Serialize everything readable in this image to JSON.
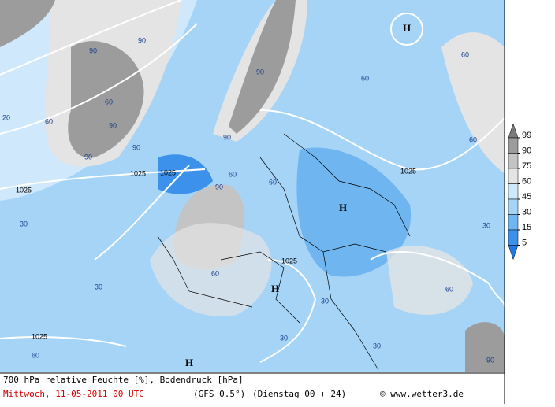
{
  "map": {
    "labels": [
      "H",
      "H",
      "H",
      "H",
      "1025",
      "1025",
      "1025",
      "1025",
      "1025",
      "1025",
      "90",
      "90",
      "90",
      "90",
      "90",
      "90",
      "90",
      "90",
      "60",
      "60",
      "60",
      "60",
      "60",
      "60",
      "60",
      "60",
      "60",
      "30",
      "30",
      "30",
      "30",
      "30",
      "30",
      "20",
      "90",
      "60"
    ]
  },
  "legend": {
    "levels": [
      99,
      90,
      75,
      60,
      45,
      30,
      15,
      5
    ],
    "colors": [
      "#7a7a7a",
      "#9c9c9c",
      "#c4c4c4",
      "#e4e4e4",
      "#cfe8fb",
      "#a5d4f7",
      "#6fb6f0",
      "#3c92ea",
      "#1e78e6"
    ]
  },
  "footer": {
    "title": "700 hPa relative Feuchte [%], Bodendruck [hPa]",
    "date": "Mittwoch, 11-05-2011  00 UTC",
    "model": "(GFS 0.5°)",
    "run": "(Dienstag 00 + 24)",
    "credit": "© www.wetter3.de"
  }
}
